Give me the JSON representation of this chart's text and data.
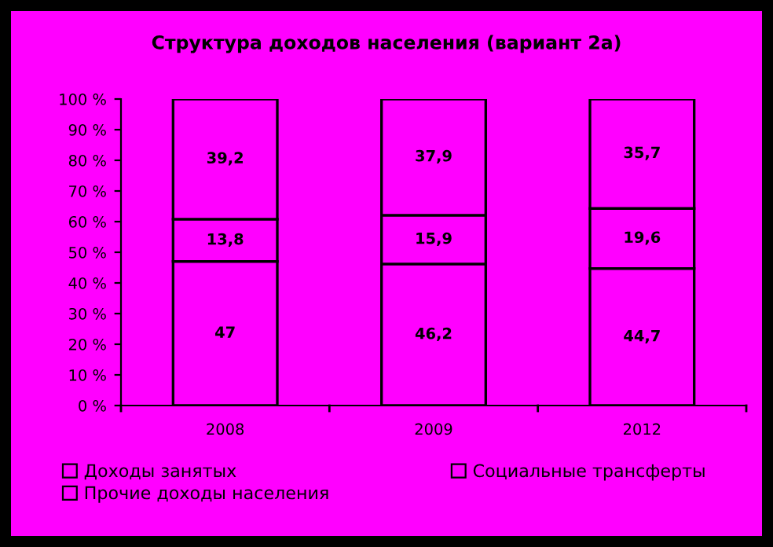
{
  "chart_data": {
    "type": "bar",
    "title": "Структура доходов населения (вариант 2а)",
    "categories": [
      "2008",
      "2009",
      "2012"
    ],
    "stacked": true,
    "series": [
      {
        "name": "Доходы занятых",
        "color": "#ff00ff",
        "values": [
          47,
          46.2,
          44.7
        ],
        "value_labels": [
          "47",
          "46,2",
          "44,7"
        ]
      },
      {
        "name": "Социальные трансферты",
        "color": "#ff00ff",
        "values": [
          13.8,
          15.9,
          19.6
        ],
        "value_labels": [
          "13,8",
          "15,9",
          "19,6"
        ]
      },
      {
        "name": "Прочие доходы населения",
        "color": "#ff00ff",
        "values": [
          39.2,
          37.9,
          35.7
        ],
        "value_labels": [
          "39,2",
          "37,9",
          "35,7"
        ]
      }
    ],
    "ylim": [
      0,
      100
    ],
    "yticks": [
      {
        "value": 0,
        "label": "0 %"
      },
      {
        "value": 10,
        "label": "10 %"
      },
      {
        "value": 20,
        "label": "20 %"
      },
      {
        "value": 30,
        "label": "30 %"
      },
      {
        "value": 40,
        "label": "40 %"
      },
      {
        "value": 50,
        "label": "50 %"
      },
      {
        "value": 60,
        "label": "60 %"
      },
      {
        "value": 70,
        "label": "70 %"
      },
      {
        "value": 80,
        "label": "80 %"
      },
      {
        "value": 90,
        "label": "90 %"
      },
      {
        "value": 100,
        "label": "100 %"
      }
    ],
    "grid": false,
    "legend": "bottom"
  }
}
